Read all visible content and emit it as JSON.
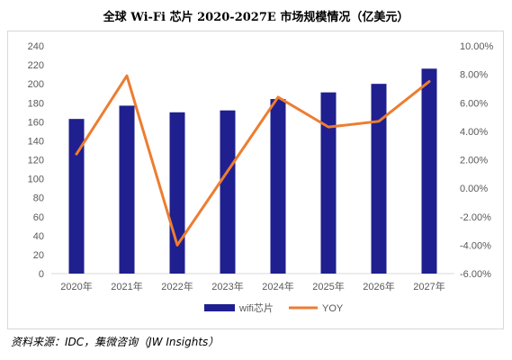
{
  "chart_data": {
    "type": "bar",
    "title": "全球 Wi-Fi 芯片 2020-2027E 市场规模情况（亿美元）",
    "categories": [
      "2020年",
      "2021年",
      "2022年",
      "2023年",
      "2024年",
      "2025年",
      "2026年",
      "2027年"
    ],
    "series": [
      {
        "name": "wifi芯片",
        "type": "bar",
        "axis": "left",
        "color": "#1f1f8f",
        "values": [
          163,
          177,
          170,
          172,
          184,
          191,
          200,
          216
        ]
      },
      {
        "name": "YOY",
        "type": "line",
        "axis": "right",
        "color": "#ed7d31",
        "values": [
          0.024,
          0.079,
          -0.04,
          0.012,
          0.064,
          0.043,
          0.047,
          0.075
        ]
      }
    ],
    "y_left": {
      "min": 0,
      "max": 240,
      "step": 20,
      "tick_labels": [
        "0",
        "20",
        "40",
        "60",
        "80",
        "100",
        "120",
        "140",
        "160",
        "180",
        "200",
        "220",
        "240"
      ]
    },
    "y_right": {
      "min": -0.06,
      "max": 0.1,
      "step": 0.02,
      "tick_labels": [
        "-6.00%",
        "-4.00%",
        "-2.00%",
        "0.00%",
        "2.00%",
        "4.00%",
        "6.00%",
        "8.00%",
        "10.00%"
      ]
    },
    "grid": false,
    "legend_position": "bottom"
  },
  "source_note": "资料来源：IDC，集微咨询（JW Insights）"
}
